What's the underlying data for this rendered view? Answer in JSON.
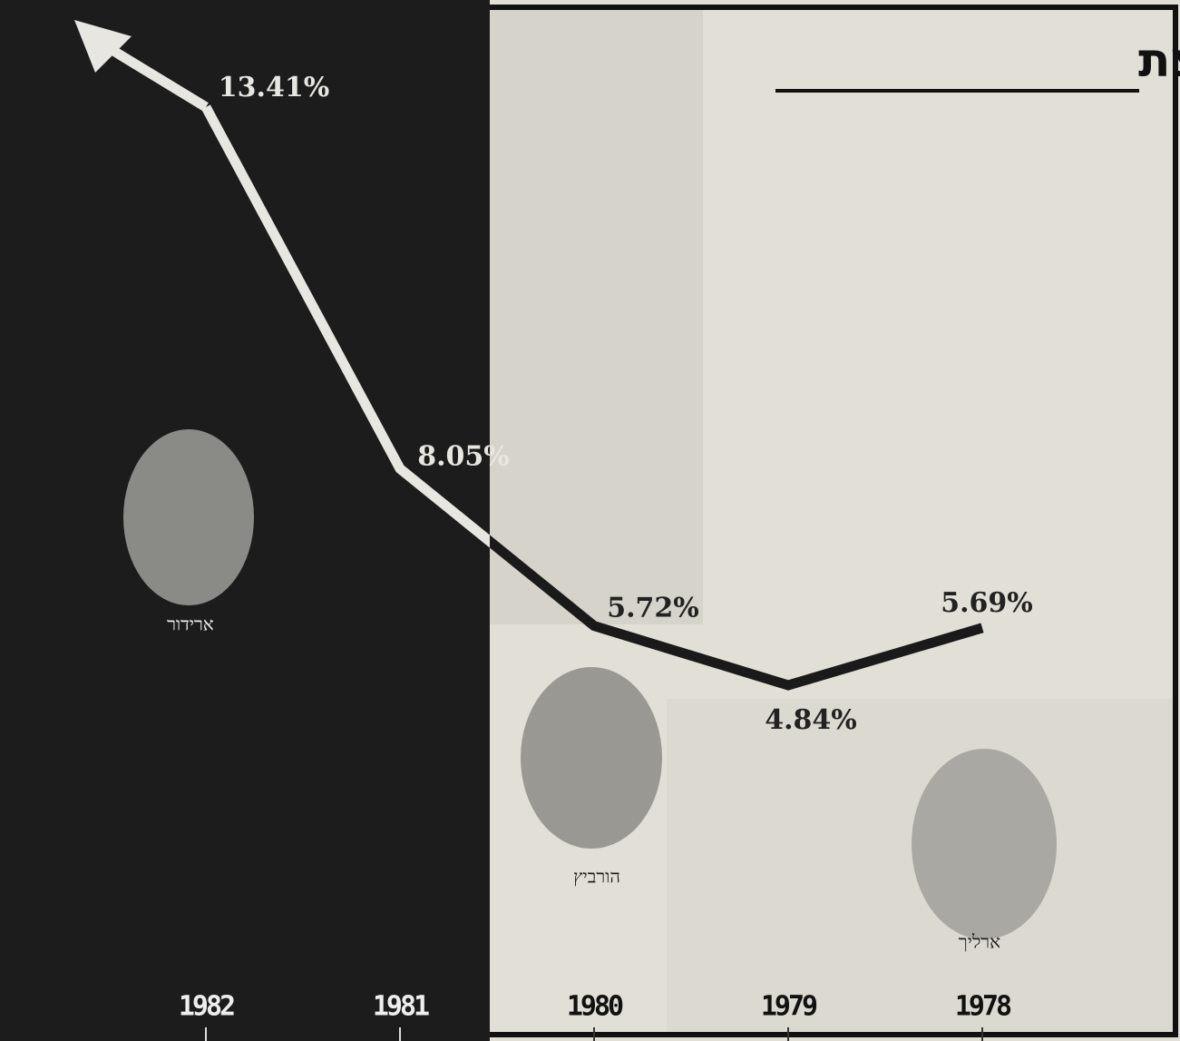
{
  "chart_data": {
    "type": "line",
    "title": "הריבית קופצת",
    "categories": [
      "1982",
      "1981",
      "1980",
      "1979",
      "1978"
    ],
    "values": [
      13.41,
      8.05,
      5.72,
      4.84,
      5.69
    ],
    "value_labels": [
      "13.41%",
      "8.05%",
      "5.72%",
      "4.84%",
      "5.69%"
    ],
    "color": "#1a1a1a",
    "annotations": [
      "ארידור",
      "הורביץ",
      "ארליך"
    ]
  }
}
